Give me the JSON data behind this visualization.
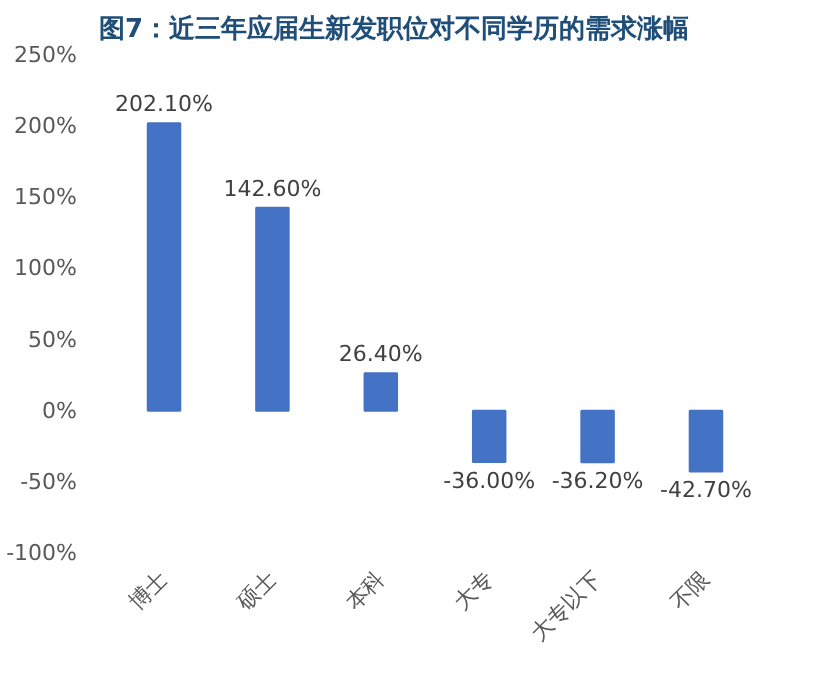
{
  "chart_data": {
    "type": "bar",
    "title": "图7：近三年应届生新发职位对不同学历的需求涨幅",
    "categories": [
      "博士",
      "硕士",
      "本科",
      "大专",
      "大专以下",
      "不限"
    ],
    "values": [
      202.1,
      142.6,
      26.4,
      -36.0,
      -36.2,
      -42.7
    ],
    "value_labels": [
      "202.10%",
      "142.60%",
      "26.40%",
      "-36.00%",
      "-36.20%",
      "-42.70%"
    ],
    "color": "#4472c4",
    "ylim": [
      -100,
      250
    ],
    "yticks": [
      {
        "value": -100,
        "label": "-100%"
      },
      {
        "value": -50,
        "label": "-50%"
      },
      {
        "value": 0,
        "label": "0%"
      },
      {
        "value": 50,
        "label": "50%"
      },
      {
        "value": 100,
        "label": "100%"
      },
      {
        "value": 150,
        "label": "150%"
      },
      {
        "value": 200,
        "label": "200%"
      },
      {
        "value": 250,
        "label": "250%"
      }
    ],
    "grid": false
  }
}
